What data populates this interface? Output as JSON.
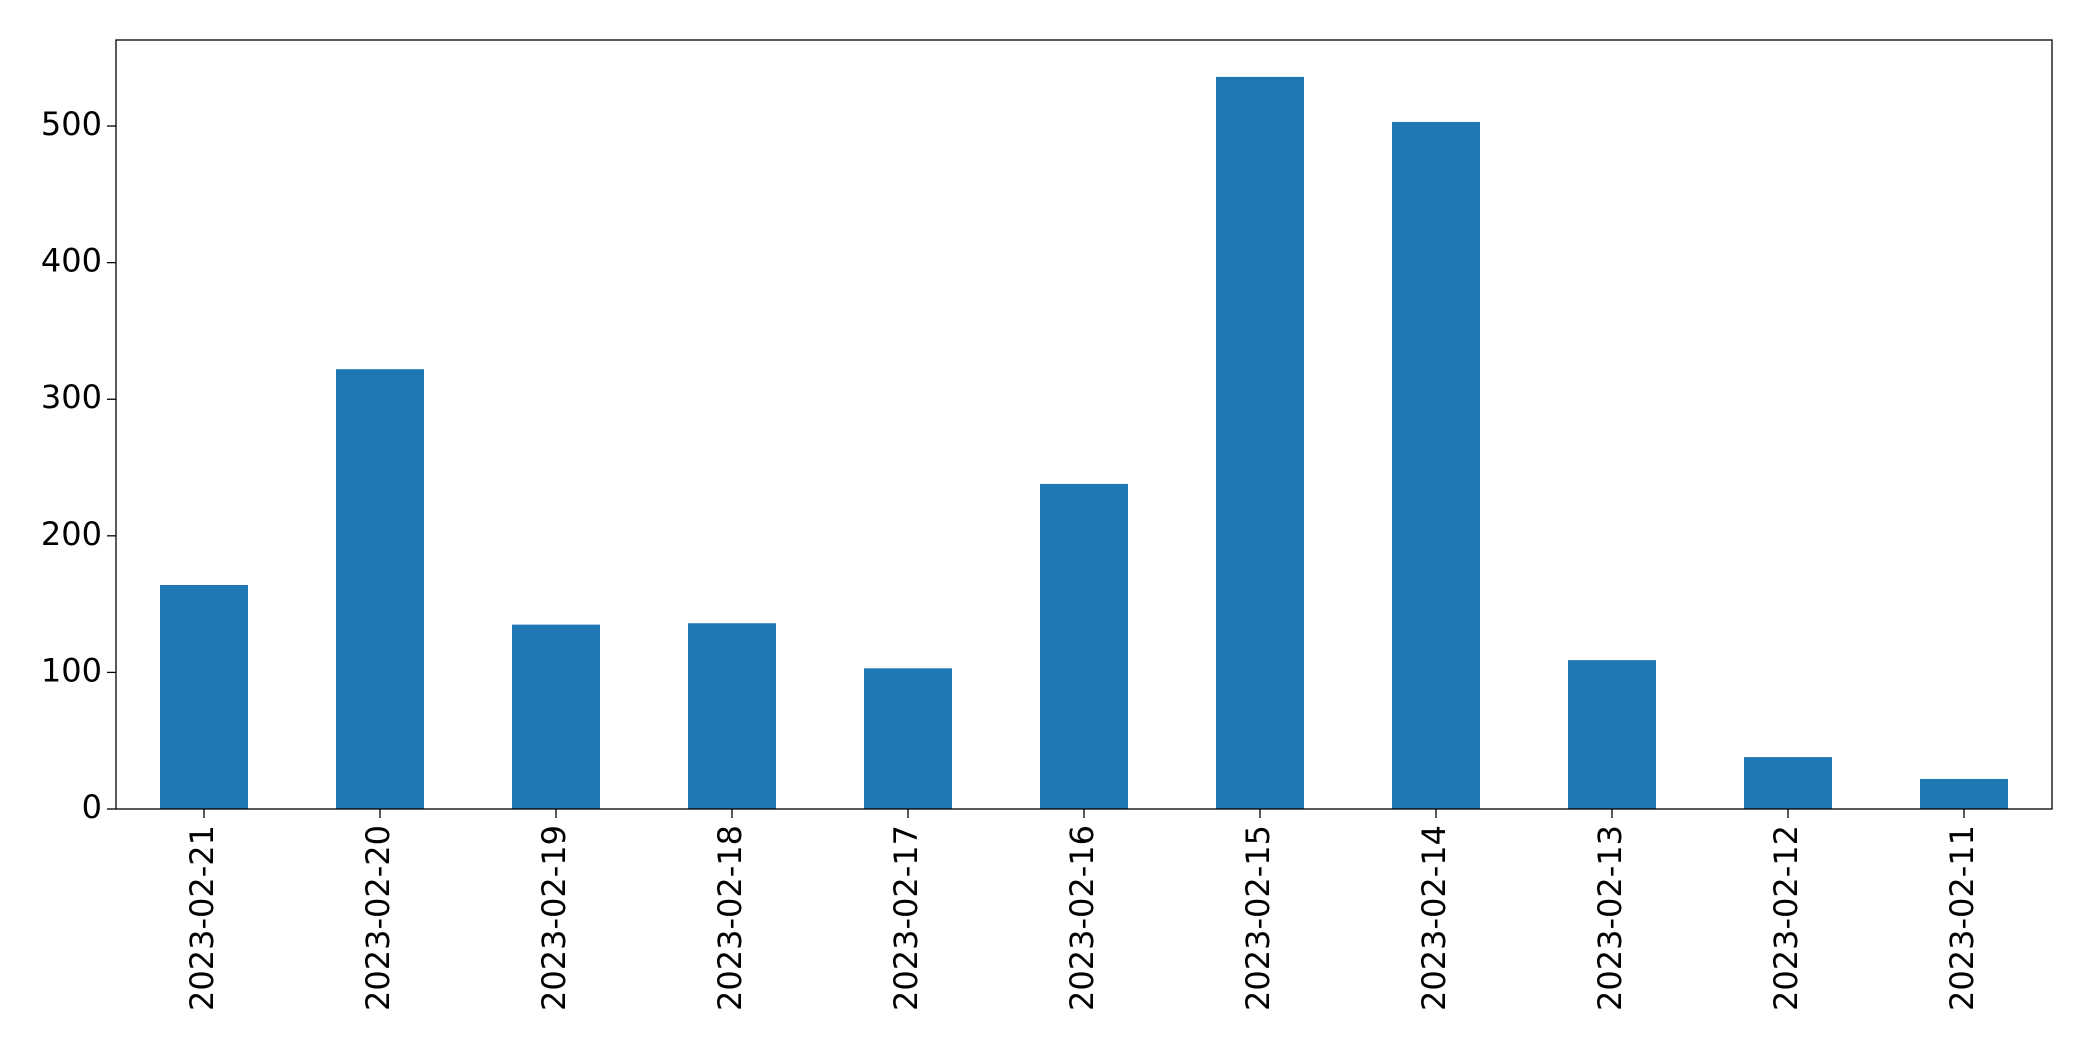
{
  "chart_data": {
    "type": "bar",
    "categories": [
      "2023-02-21",
      "2023-02-20",
      "2023-02-19",
      "2023-02-18",
      "2023-02-17",
      "2023-02-16",
      "2023-02-15",
      "2023-02-14",
      "2023-02-13",
      "2023-02-12",
      "2023-02-11"
    ],
    "values": [
      164,
      322,
      135,
      136,
      103,
      238,
      536,
      503,
      109,
      38,
      22
    ],
    "color": "#1f77b4",
    "ylim": [
      0,
      563
    ],
    "yticks": [
      0,
      100,
      200,
      300,
      400,
      500
    ],
    "grid": false
  }
}
